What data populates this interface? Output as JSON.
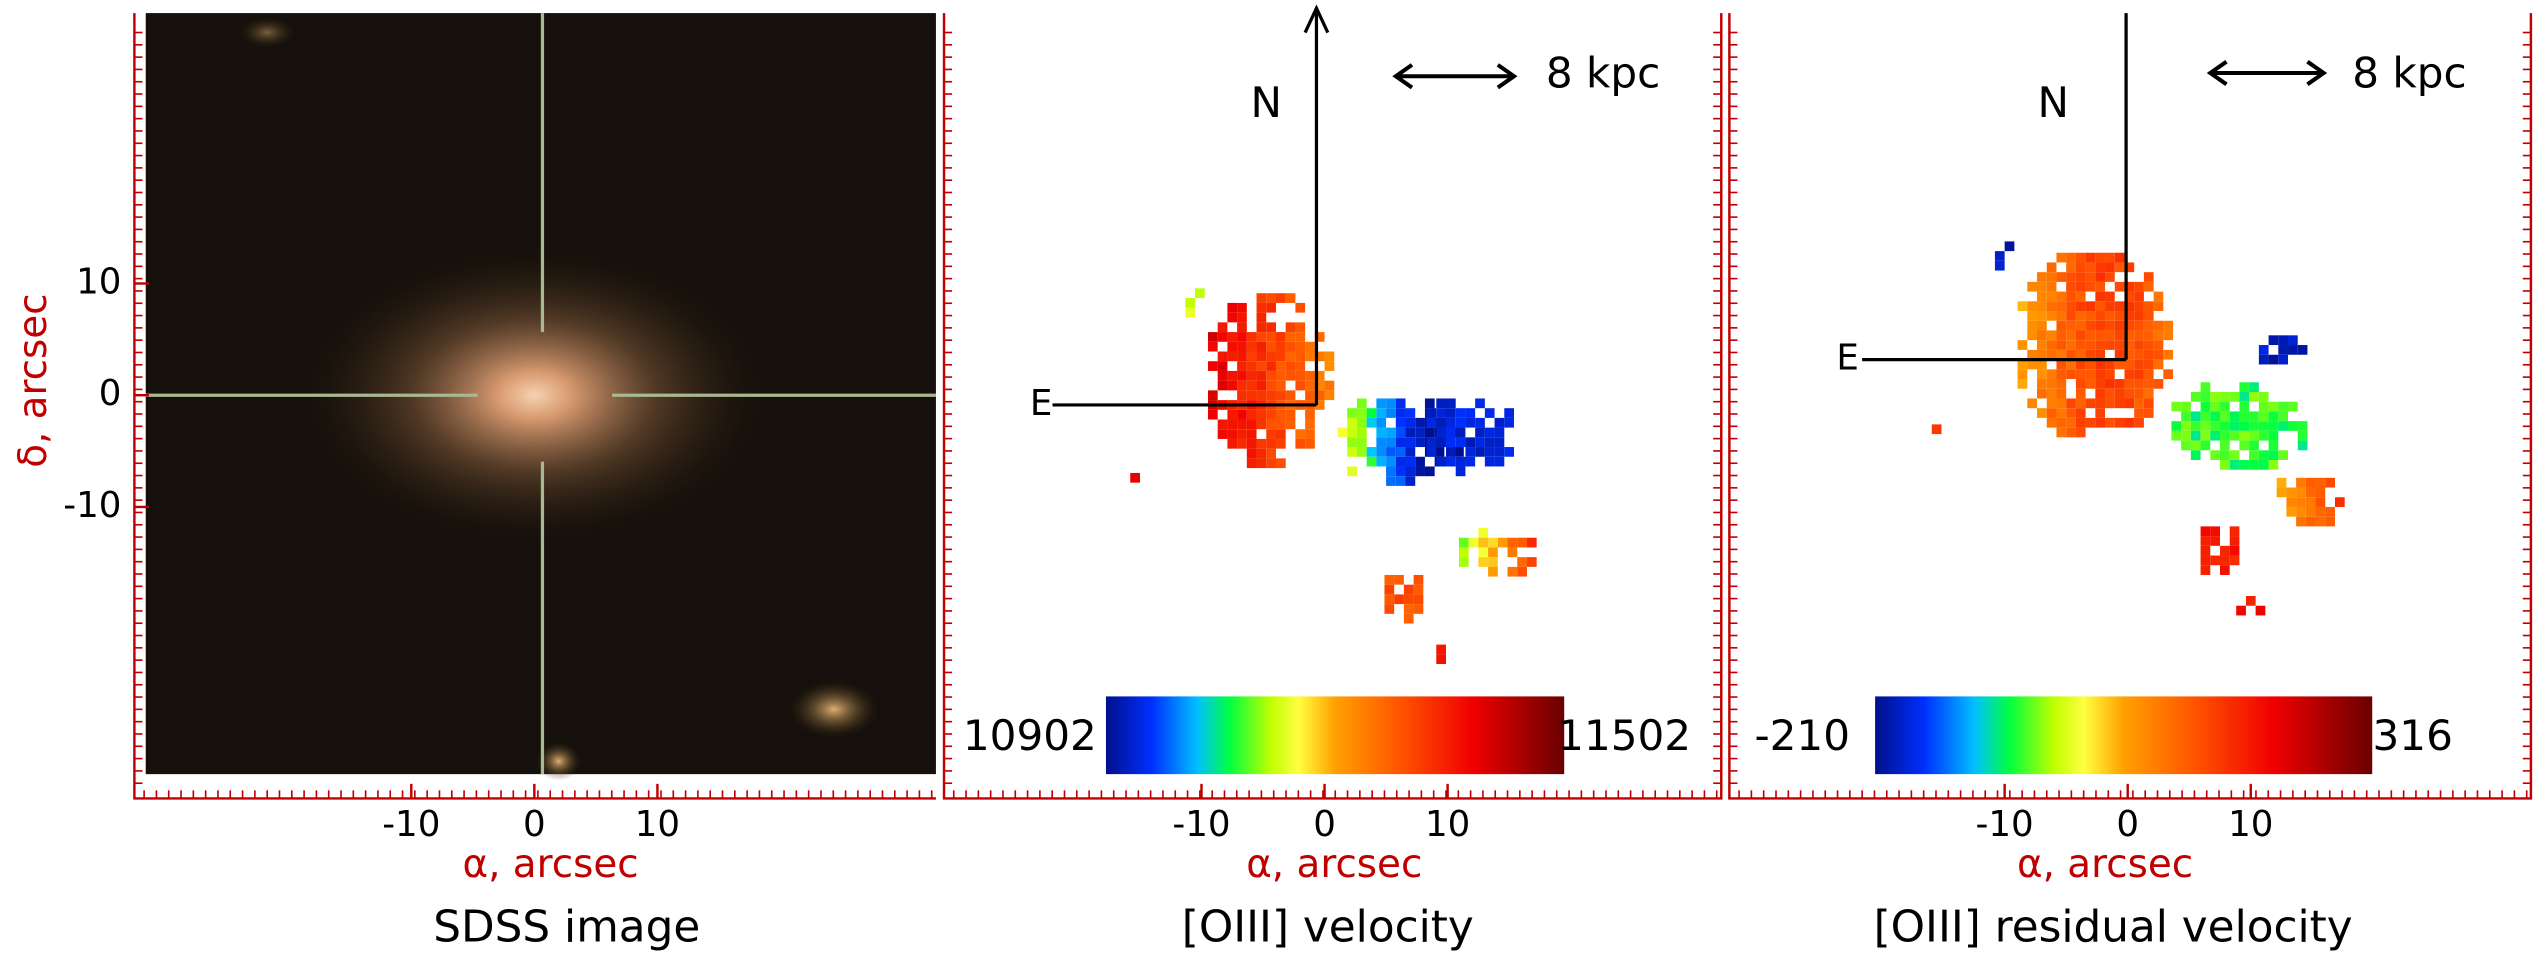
{
  "panels": [
    {
      "title": "SDSS image",
      "x_label": "α, arcsec",
      "y_label": "δ, arcsec",
      "xticks": [
        -10,
        0,
        10
      ],
      "yticks": [
        10,
        0,
        -10
      ]
    },
    {
      "title": "[OIII] velocity",
      "x_label": "α, arcsec",
      "xticks": [
        -10,
        0,
        10
      ],
      "colorbar": [
        10902,
        11502
      ],
      "north": "N",
      "east": "E",
      "scale": "8 kpc"
    },
    {
      "title": "[OIII] residual velocity",
      "x_label": "α, arcsec",
      "xticks": [
        -10,
        0,
        10
      ],
      "colorbar": [
        -210,
        316
      ],
      "north": "N",
      "east": "E",
      "scale": "8 kpc"
    }
  ]
}
